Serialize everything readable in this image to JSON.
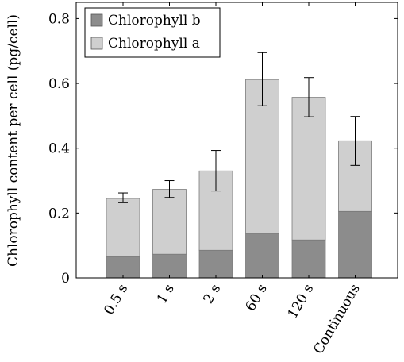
{
  "chart_data": {
    "type": "bar",
    "stacked": true,
    "categories": [
      "0.5 s",
      "1 s",
      "2 s",
      "60 s",
      "120 s",
      "Continuous"
    ],
    "series": [
      {
        "name": "Chlorophyll b",
        "color": "#8c8c8c",
        "values": [
          0.065,
          0.073,
          0.085,
          0.137,
          0.117,
          0.205
        ]
      },
      {
        "name": "Chlorophyll a",
        "color": "#cfcfcf",
        "values": [
          0.18,
          0.2,
          0.245,
          0.475,
          0.44,
          0.218
        ]
      }
    ],
    "error_bars": {
      "lower": [
        0.232,
        0.248,
        0.268,
        0.531,
        0.497,
        0.347
      ],
      "upper": [
        0.262,
        0.3,
        0.393,
        0.695,
        0.618,
        0.498
      ]
    },
    "ylabel": "Chlorophyll content per cell (pg/cell)",
    "xlabel": "",
    "title": "",
    "ylim": [
      0,
      0.85
    ],
    "yticks": [
      0,
      0.2,
      0.4,
      0.6,
      0.8
    ],
    "ytick_labels": [
      "0",
      "0.2",
      "0.4",
      "0.6",
      "0.8"
    ],
    "legend_position": "top-left",
    "grid": false
  }
}
